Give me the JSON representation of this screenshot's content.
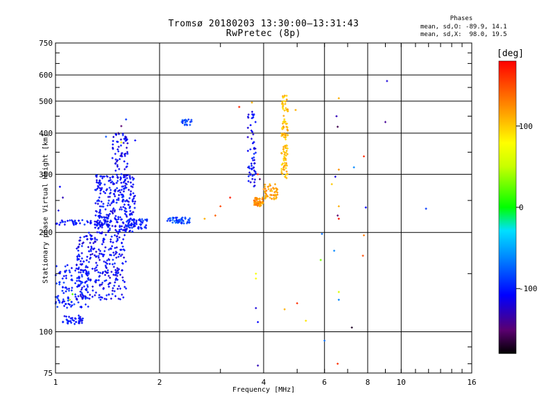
{
  "header": {
    "title_line1": "Tromsø 20180203 13:30:00–13:31:43",
    "title_line2": "RwPretec (8p)"
  },
  "phases_legend": {
    "title": "Phases",
    "line_o": "mean, sd,O: -89.9, 14.1",
    "line_x": "mean, sd,X:  98.0, 19.5"
  },
  "colorbar": {
    "title": "[deg]",
    "ticks": [
      "100",
      "0",
      "-100"
    ],
    "range": [
      -180,
      180
    ]
  },
  "chart_data": {
    "type": "scatter",
    "xlabel": "Frequency [MHz]",
    "ylabel": "Stationary phase Virtual Height [km]",
    "x_scale": "log",
    "y_scale": "log",
    "xlim": [
      1,
      16
    ],
    "ylim": [
      75,
      750
    ],
    "x_ticks": [
      {
        "value": 1,
        "label": "1"
      },
      {
        "value": 2,
        "label": "2"
      },
      {
        "value": 4,
        "label": "4"
      },
      {
        "value": 6,
        "label": "6"
      },
      {
        "value": 8,
        "label": "8"
      },
      {
        "value": 10,
        "label": "10"
      },
      {
        "value": 16,
        "label": "16"
      }
    ],
    "y_ticks": [
      {
        "value": 75,
        "label": "75"
      },
      {
        "value": 100,
        "label": "100"
      },
      {
        "value": 200,
        "label": "200"
      },
      {
        "value": 300,
        "label": "300"
      },
      {
        "value": 400,
        "label": "400"
      },
      {
        "value": 500,
        "label": "500"
      },
      {
        "value": 600,
        "label": "600"
      },
      {
        "value": 750,
        "label": "750"
      }
    ],
    "grid": true,
    "clusters": [
      {
        "f": [
          1.05,
          1.2
        ],
        "h": [
          105,
          112
        ],
        "phase": -105,
        "n": 40
      },
      {
        "f": [
          1.0,
          1.25
        ],
        "h": [
          118,
          160
        ],
        "phase": -100,
        "n": 120
      },
      {
        "f": [
          1.0,
          1.45
        ],
        "h": [
          210,
          218
        ],
        "phase": -105,
        "n": 60
      },
      {
        "f": [
          1.15,
          1.6
        ],
        "h": [
          125,
          200
        ],
        "phase": -110,
        "n": 280
      },
      {
        "f": [
          1.3,
          1.7
        ],
        "h": [
          200,
          300
        ],
        "phase": -108,
        "n": 300
      },
      {
        "f": [
          1.45,
          1.62
        ],
        "h": [
          300,
          400
        ],
        "phase": -112,
        "n": 60
      },
      {
        "f": [
          1.6,
          1.85
        ],
        "h": [
          205,
          220
        ],
        "phase": -100,
        "n": 50
      },
      {
        "f": [
          2.1,
          2.45
        ],
        "h": [
          213,
          222
        ],
        "phase": -85,
        "n": 50
      },
      {
        "f": [
          2.3,
          2.5
        ],
        "h": [
          422,
          440
        ],
        "phase": -85,
        "n": 20
      },
      {
        "f": [
          3.6,
          3.8
        ],
        "h": [
          270,
          470
        ],
        "phase": -110,
        "n": 60
      },
      {
        "f": [
          3.75,
          4.0
        ],
        "h": [
          240,
          255
        ],
        "phase": 120,
        "n": 60
      },
      {
        "f": [
          4.0,
          4.4
        ],
        "h": [
          252,
          280
        ],
        "phase": 115,
        "n": 50
      },
      {
        "f": [
          4.5,
          4.7
        ],
        "h": [
          290,
          520
        ],
        "phase": 105,
        "n": 110
      }
    ],
    "points": [
      {
        "f": 3.4,
        "h": 480,
        "phase": 165
      },
      {
        "f": 3.7,
        "h": 495,
        "phase": 110
      },
      {
        "f": 4.95,
        "h": 470,
        "phase": 110
      },
      {
        "f": 3.2,
        "h": 255,
        "phase": 170
      },
      {
        "f": 3.0,
        "h": 240,
        "phase": 150
      },
      {
        "f": 2.9,
        "h": 225,
        "phase": 140
      },
      {
        "f": 2.7,
        "h": 220,
        "phase": 110
      },
      {
        "f": 3.85,
        "h": 300,
        "phase": 170
      },
      {
        "f": 3.9,
        "h": 290,
        "phase": -150
      },
      {
        "f": 6.6,
        "h": 510,
        "phase": 110
      },
      {
        "f": 6.5,
        "h": 450,
        "phase": -130
      },
      {
        "f": 6.55,
        "h": 418,
        "phase": -160
      },
      {
        "f": 6.6,
        "h": 310,
        "phase": 120
      },
      {
        "f": 6.45,
        "h": 295,
        "phase": -120
      },
      {
        "f": 6.3,
        "h": 280,
        "phase": 100
      },
      {
        "f": 7.3,
        "h": 315,
        "phase": -60
      },
      {
        "f": 7.8,
        "h": 340,
        "phase": 160
      },
      {
        "f": 9.1,
        "h": 575,
        "phase": -120
      },
      {
        "f": 9.0,
        "h": 432,
        "phase": -140
      },
      {
        "f": 6.6,
        "h": 240,
        "phase": 110
      },
      {
        "f": 6.55,
        "h": 225,
        "phase": -150
      },
      {
        "f": 6.6,
        "h": 220,
        "phase": 170
      },
      {
        "f": 7.9,
        "h": 238,
        "phase": -110
      },
      {
        "f": 11.8,
        "h": 236,
        "phase": -90
      },
      {
        "f": 5.9,
        "h": 198,
        "phase": -70
      },
      {
        "f": 6.4,
        "h": 176,
        "phase": -60
      },
      {
        "f": 7.8,
        "h": 196,
        "phase": 130
      },
      {
        "f": 5.85,
        "h": 165,
        "phase": 30
      },
      {
        "f": 7.75,
        "h": 170,
        "phase": 150
      },
      {
        "f": 3.8,
        "h": 150,
        "phase": 75
      },
      {
        "f": 3.8,
        "h": 145,
        "phase": 80
      },
      {
        "f": 6.6,
        "h": 132,
        "phase": 60
      },
      {
        "f": 6.6,
        "h": 125,
        "phase": -60
      },
      {
        "f": 5.0,
        "h": 122,
        "phase": 160
      },
      {
        "f": 4.6,
        "h": 117,
        "phase": 110
      },
      {
        "f": 3.8,
        "h": 118,
        "phase": -120
      },
      {
        "f": 3.85,
        "h": 107,
        "phase": -110
      },
      {
        "f": 5.3,
        "h": 108,
        "phase": 90
      },
      {
        "f": 7.2,
        "h": 103,
        "phase": -170
      },
      {
        "f": 6.0,
        "h": 94,
        "phase": -70
      },
      {
        "f": 6.55,
        "h": 80,
        "phase": 160
      },
      {
        "f": 3.85,
        "h": 79,
        "phase": -130
      },
      {
        "f": 1.03,
        "h": 275,
        "phase": -110
      },
      {
        "f": 1.05,
        "h": 255,
        "phase": -130
      },
      {
        "f": 1.02,
        "h": 233,
        "phase": -120
      },
      {
        "f": 1.6,
        "h": 440,
        "phase": -90
      },
      {
        "f": 1.55,
        "h": 420,
        "phase": -150
      },
      {
        "f": 1.52,
        "h": 400,
        "phase": -160
      },
      {
        "f": 1.55,
        "h": 375,
        "phase": 80
      },
      {
        "f": 1.4,
        "h": 390,
        "phase": -80
      },
      {
        "f": 1.7,
        "h": 380,
        "phase": -110
      },
      {
        "f": 1.1,
        "h": 125,
        "phase": 40
      },
      {
        "f": 1.12,
        "h": 130,
        "phase": 20
      }
    ]
  }
}
